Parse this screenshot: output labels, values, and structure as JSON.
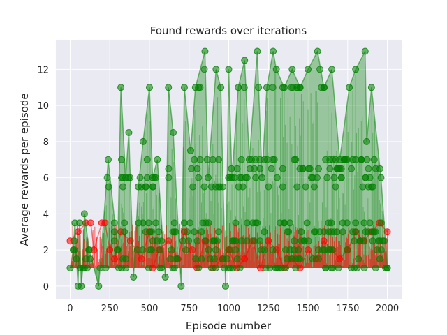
{
  "chart_data": {
    "type": "scatter",
    "title": "Found rewards over iterations",
    "xlabel": "Episode number",
    "ylabel": "Average rewards per episode",
    "xlim": [
      -90,
      2090
    ],
    "ylim": [
      -0.7,
      13.6
    ],
    "xticks": [
      0,
      250,
      500,
      750,
      1000,
      1250,
      1500,
      1750,
      2000
    ],
    "yticks": [
      0,
      2,
      4,
      6,
      8,
      10,
      12
    ],
    "grid": true,
    "legend": "none",
    "background_color": "#eaeaf2",
    "grid_color": "#ffffff",
    "series": [
      {
        "color": "#ff0000",
        "x": [
          0,
          50,
          100,
          130,
          150,
          200,
          220,
          250,
          280,
          320,
          380,
          450,
          500,
          520,
          560,
          620,
          680,
          720,
          770,
          800,
          850,
          900,
          960,
          1000,
          1050,
          1100,
          1150,
          1200,
          1250,
          1300,
          1350,
          1400,
          1450,
          1500,
          1550,
          1600,
          1650,
          1700,
          1750,
          1800,
          1850,
          1900,
          1950,
          2000
        ],
        "y": [
          2.5,
          3.0,
          3.5,
          3.5,
          2.0,
          3.5,
          3.5,
          2.0,
          1.5,
          3.0,
          2.5,
          1.5,
          3.0,
          1.0,
          2.0,
          2.5,
          1.5,
          3.0,
          2.0,
          1.0,
          2.5,
          1.0,
          1.5,
          2.0,
          1.0,
          1.5,
          2.5,
          1.0,
          2.5,
          2.0,
          1.0,
          1.5,
          1.0,
          2.0,
          1.5,
          2.5,
          2.0,
          1.5,
          2.0,
          3.0,
          2.5,
          3.0,
          3.5,
          3.0
        ]
      },
      {
        "color": "#008000",
        "x": [
          0,
          20,
          30,
          40,
          50,
          60,
          70,
          80,
          90,
          120,
          180,
          240,
          300,
          320,
          350,
          370,
          400,
          430,
          460,
          500,
          520,
          550,
          600,
          620,
          650,
          700,
          720,
          760,
          790,
          850,
          870,
          920,
          950,
          980,
          1000,
          1020,
          1060,
          1100,
          1130,
          1180,
          1210,
          1240,
          1280,
          1300,
          1350,
          1400,
          1450,
          1500,
          1560,
          1600,
          1650,
          1700,
          1760,
          1800,
          1860,
          1870,
          1900,
          1960,
          2000
        ],
        "y": [
          1.0,
          2.0,
          3.5,
          1.5,
          0.0,
          3.5,
          0.0,
          1.0,
          4.0,
          2.0,
          0.0,
          7.0,
          2.0,
          11.0,
          6.0,
          8.5,
          0.5,
          5.5,
          8.0,
          11.0,
          6.0,
          7.0,
          0.5,
          11.0,
          8.5,
          0.0,
          11.0,
          7.5,
          11.0,
          13.0,
          6.0,
          12.0,
          11.0,
          0.0,
          12.0,
          6.0,
          11.0,
          12.5,
          7.0,
          13.0,
          6.0,
          11.0,
          13.0,
          12.0,
          11.0,
          12.0,
          11.0,
          12.0,
          13.0,
          11.0,
          12.0,
          7.0,
          11.0,
          12.0,
          13.0,
          8.0,
          11.0,
          6.0,
          1.0
        ]
      }
    ]
  }
}
